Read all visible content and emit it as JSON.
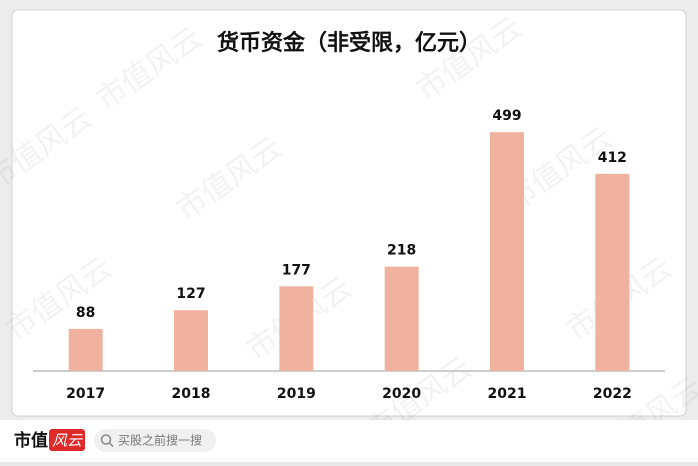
{
  "chart_data": {
    "type": "bar",
    "title": "货币资金（非受限，亿元）",
    "categories": [
      "2017",
      "2018",
      "2019",
      "2020",
      "2021",
      "2022"
    ],
    "values": [
      88,
      127,
      177,
      218,
      499,
      412
    ],
    "color": "#f0b29e",
    "ylim": [
      0,
      560
    ]
  },
  "watermark": "市值风云",
  "footer": {
    "brand": "市值",
    "brand_stamp": "风云",
    "search_placeholder": "买股之前搜一搜"
  }
}
